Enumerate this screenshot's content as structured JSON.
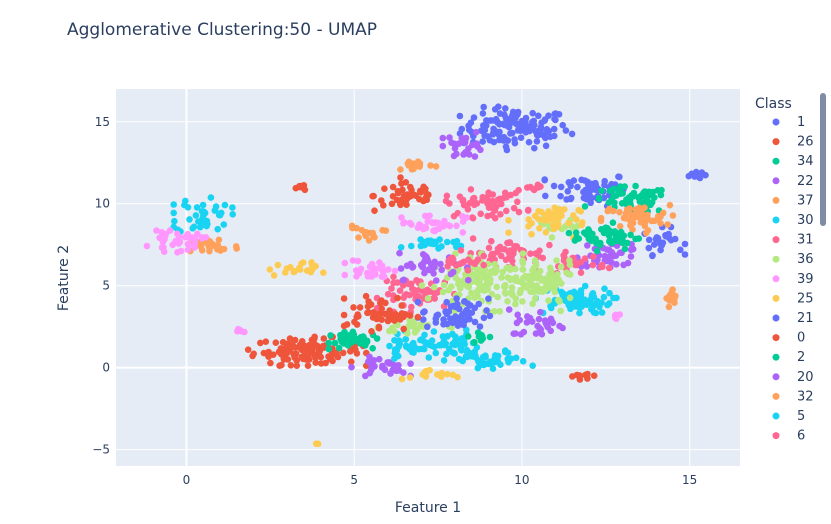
{
  "chart_data": {
    "type": "scatter",
    "title": "Agglomerative Clustering:50 -  UMAP",
    "xlabel": "Feature 1",
    "ylabel": "Feature 2",
    "xlim": [
      -2.1,
      16.5
    ],
    "ylim": [
      -6.0,
      17.0
    ],
    "x_ticks": [
      0,
      5,
      10,
      15
    ],
    "y_ticks": [
      -5,
      0,
      5,
      10,
      15
    ],
    "grid": true,
    "legend_title": "Class",
    "legend_position": "right",
    "series": [
      {
        "name": "1",
        "color": "#636efa",
        "clusters": [
          {
            "x": 9.8,
            "y": 14.6,
            "sx": 0.8,
            "sy": 0.6,
            "n": 120
          },
          {
            "x": 12.0,
            "y": 10.9,
            "sx": 0.6,
            "sy": 0.5,
            "n": 60
          },
          {
            "x": 14.2,
            "y": 7.7,
            "sx": 0.3,
            "sy": 0.4,
            "n": 25
          },
          {
            "x": 15.2,
            "y": 11.8,
            "sx": 0.15,
            "sy": 0.15,
            "n": 10
          }
        ]
      },
      {
        "name": "26",
        "color": "#EF553B",
        "clusters": [
          {
            "x": 3.6,
            "y": 1.0,
            "sx": 0.8,
            "sy": 0.4,
            "n": 110
          },
          {
            "x": 6.6,
            "y": 10.5,
            "sx": 0.5,
            "sy": 0.5,
            "n": 45
          },
          {
            "x": 3.5,
            "y": 11.0,
            "sx": 0.2,
            "sy": 0.1,
            "n": 8
          }
        ]
      },
      {
        "name": "34",
        "color": "#00cc96",
        "clusters": [
          {
            "x": 13.2,
            "y": 10.2,
            "sx": 0.6,
            "sy": 0.4,
            "n": 60
          },
          {
            "x": 4.9,
            "y": 1.8,
            "sx": 0.3,
            "sy": 0.3,
            "n": 20
          }
        ]
      },
      {
        "name": "22",
        "color": "#ab63fa",
        "clusters": [
          {
            "x": 8.3,
            "y": 13.6,
            "sx": 0.3,
            "sy": 0.4,
            "n": 25
          },
          {
            "x": 12.6,
            "y": 7.0,
            "sx": 0.5,
            "sy": 0.4,
            "n": 45
          },
          {
            "x": 5.8,
            "y": 0.0,
            "sx": 0.4,
            "sy": 0.3,
            "n": 30
          }
        ]
      },
      {
        "name": "37",
        "color": "#FFA15A",
        "clusters": [
          {
            "x": 13.4,
            "y": 9.1,
            "sx": 0.5,
            "sy": 0.4,
            "n": 50
          },
          {
            "x": 0.8,
            "y": 7.4,
            "sx": 0.4,
            "sy": 0.3,
            "n": 30
          },
          {
            "x": 6.8,
            "y": 12.4,
            "sx": 0.3,
            "sy": 0.2,
            "n": 15
          },
          {
            "x": 5.5,
            "y": 8.2,
            "sx": 0.3,
            "sy": 0.2,
            "n": 12
          },
          {
            "x": 14.5,
            "y": 4.2,
            "sx": 0.1,
            "sy": 0.3,
            "n": 15
          }
        ]
      },
      {
        "name": "30",
        "color": "#19d3f3",
        "clusters": [
          {
            "x": 0.5,
            "y": 9.3,
            "sx": 0.4,
            "sy": 0.6,
            "n": 40
          },
          {
            "x": 11.5,
            "y": 4.1,
            "sx": 0.6,
            "sy": 0.4,
            "n": 70
          },
          {
            "x": 7.5,
            "y": 1.5,
            "sx": 0.6,
            "sy": 0.4,
            "n": 60
          },
          {
            "x": 9.0,
            "y": 0.4,
            "sx": 0.6,
            "sy": 0.3,
            "n": 45
          },
          {
            "x": 7.5,
            "y": 7.6,
            "sx": 0.5,
            "sy": 0.2,
            "n": 25
          }
        ]
      },
      {
        "name": "31",
        "color": "#FF6692",
        "clusters": [
          {
            "x": 8.9,
            "y": 10.0,
            "sx": 0.6,
            "sy": 0.4,
            "n": 55
          },
          {
            "x": 9.5,
            "y": 7.0,
            "sx": 0.6,
            "sy": 0.4,
            "n": 45
          },
          {
            "x": 7.0,
            "y": 4.5,
            "sx": 0.6,
            "sy": 0.5,
            "n": 55
          },
          {
            "x": 11.5,
            "y": 6.4,
            "sx": 0.5,
            "sy": 0.3,
            "n": 30
          },
          {
            "x": 10.3,
            "y": 11.0,
            "sx": 0.15,
            "sy": 0.1,
            "n": 8
          }
        ]
      },
      {
        "name": "36",
        "color": "#B6E880",
        "clusters": [
          {
            "x": 9.0,
            "y": 5.2,
            "sx": 0.9,
            "sy": 0.8,
            "n": 140
          },
          {
            "x": 10.6,
            "y": 5.0,
            "sx": 0.5,
            "sy": 0.7,
            "n": 60
          },
          {
            "x": 11.0,
            "y": 8.8,
            "sx": 0.3,
            "sy": 0.4,
            "n": 25
          },
          {
            "x": 6.8,
            "y": 2.5,
            "sx": 0.5,
            "sy": 0.3,
            "n": 25
          }
        ]
      },
      {
        "name": "39",
        "color": "#FF97FF",
        "clusters": [
          {
            "x": -0.3,
            "y": 7.7,
            "sx": 0.4,
            "sy": 0.3,
            "n": 35
          },
          {
            "x": 5.6,
            "y": 6.0,
            "sx": 0.4,
            "sy": 0.3,
            "n": 30
          },
          {
            "x": 7.3,
            "y": 8.8,
            "sx": 0.5,
            "sy": 0.3,
            "n": 35
          },
          {
            "x": 1.6,
            "y": 2.2,
            "sx": 0.1,
            "sy": 0.1,
            "n": 6
          },
          {
            "x": 12.8,
            "y": 3.2,
            "sx": 0.1,
            "sy": 0.1,
            "n": 6
          }
        ]
      },
      {
        "name": "25",
        "color": "#FECB52",
        "clusters": [
          {
            "x": 10.7,
            "y": 9.0,
            "sx": 0.5,
            "sy": 0.5,
            "n": 40
          },
          {
            "x": 3.2,
            "y": 6.0,
            "sx": 0.4,
            "sy": 0.2,
            "n": 20
          },
          {
            "x": 7.2,
            "y": -0.5,
            "sx": 0.4,
            "sy": 0.2,
            "n": 15
          },
          {
            "x": 3.9,
            "y": -4.6,
            "sx": 0.05,
            "sy": 0.05,
            "n": 2
          }
        ]
      },
      {
        "name": "21",
        "color": "#636efa",
        "clusters": [
          {
            "x": 8.0,
            "y": 3.2,
            "sx": 0.5,
            "sy": 0.5,
            "n": 55
          }
        ]
      },
      {
        "name": "0",
        "color": "#EF553B",
        "clusters": [
          {
            "x": 5.8,
            "y": 3.3,
            "sx": 0.5,
            "sy": 0.5,
            "n": 50
          },
          {
            "x": 11.8,
            "y": -0.5,
            "sx": 0.2,
            "sy": 0.1,
            "n": 10
          }
        ]
      },
      {
        "name": "2",
        "color": "#00cc96",
        "clusters": [
          {
            "x": 12.5,
            "y": 8.0,
            "sx": 0.5,
            "sy": 0.4,
            "n": 50
          },
          {
            "x": 5.0,
            "y": 1.7,
            "sx": 0.4,
            "sy": 0.3,
            "n": 25
          },
          {
            "x": 8.8,
            "y": 1.8,
            "sx": 0.2,
            "sy": 0.2,
            "n": 10
          }
        ]
      },
      {
        "name": "20",
        "color": "#ab63fa",
        "clusters": [
          {
            "x": 7.3,
            "y": 6.2,
            "sx": 0.5,
            "sy": 0.4,
            "n": 40
          },
          {
            "x": 10.5,
            "y": 2.7,
            "sx": 0.4,
            "sy": 0.4,
            "n": 30
          }
        ]
      },
      {
        "name": "32",
        "color": "#FFA15A",
        "clusters": [
          {
            "x": 5.0,
            "y": 8.5,
            "sx": 0.1,
            "sy": 0.1,
            "n": 4
          }
        ]
      },
      {
        "name": "5",
        "color": "#19d3f3",
        "clusters": [
          {
            "x": 6.5,
            "y": 1.2,
            "sx": 0.3,
            "sy": 0.3,
            "n": 20
          }
        ]
      },
      {
        "name": "6",
        "color": "#FF6692",
        "clusters": [
          {
            "x": 8.2,
            "y": 6.5,
            "sx": 0.3,
            "sy": 0.3,
            "n": 20
          }
        ]
      }
    ]
  }
}
